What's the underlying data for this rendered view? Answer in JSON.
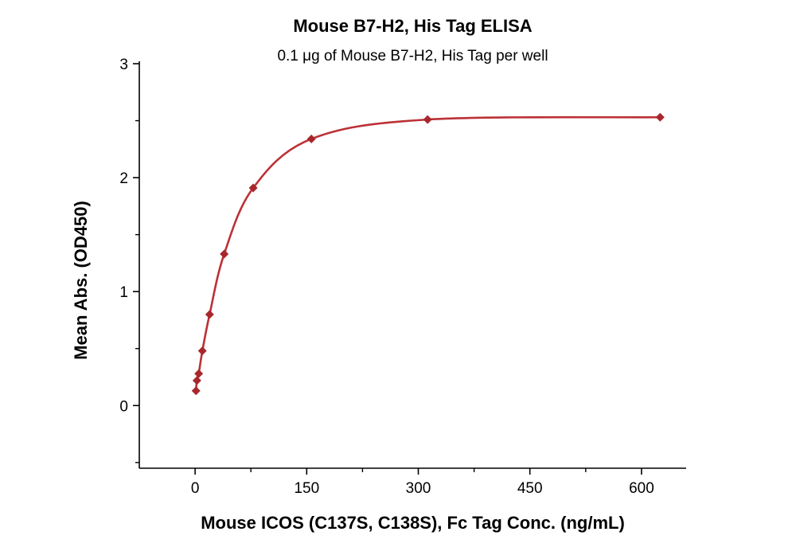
{
  "chart_data": {
    "type": "scatter",
    "title": "Mouse B7-H2, His Tag ELISA",
    "subtitle": "0.1 μg of Mouse B7-H2, His Tag per well",
    "xlabel": "Mouse ICOS (C137S, C138S), Fc Tag Conc. (ng/mL)",
    "ylabel": "Mean Abs. (OD450)",
    "x": [
      1.22,
      2.44,
      4.88,
      9.77,
      19.5,
      39.1,
      78.1,
      156.3,
      312.5,
      625
    ],
    "y": [
      0.13,
      0.22,
      0.28,
      0.48,
      0.8,
      1.33,
      1.91,
      2.34,
      2.51,
      2.53
    ],
    "xticks": [
      0,
      150,
      300,
      450,
      600
    ],
    "yticks": [
      0,
      1,
      2,
      3
    ],
    "xminorticks": [
      75,
      225,
      375,
      525
    ],
    "yminorticks": [
      -0.5,
      0.5,
      1.5,
      2.5
    ],
    "xlim": [
      -75,
      660
    ],
    "ylim": [
      -0.55,
      3
    ],
    "grid": false,
    "legend": "none",
    "marker_shape": "diamond",
    "colors": {
      "curve": "#bb3136",
      "marker": "#a8272c",
      "axis": "#000000"
    }
  }
}
